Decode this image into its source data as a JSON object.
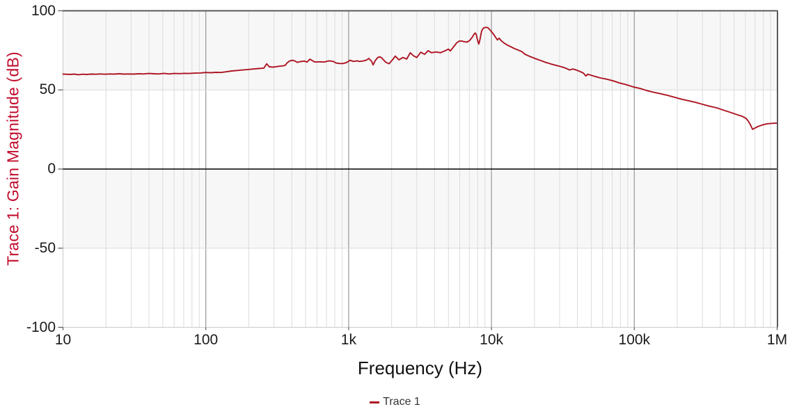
{
  "style": {
    "ylabel_color": "#c10d2d",
    "trace_color": "#ad1522",
    "band_color": "#f7f7f7",
    "minor_grid_color": "#dcdcdc",
    "major_grid_color": "#9e9e9e",
    "frame_dark_color": "#5a5a5a",
    "frame_light_color": "#c9c9c9",
    "zero_line_color": "#000000",
    "axis_tick_mark_color": "#555555",
    "tick_text_color": "#1b1b1b",
    "legend_text_color": "#333333"
  },
  "chart_data": {
    "type": "line",
    "title": "",
    "xlabel": "Frequency (Hz)",
    "ylabel": "Trace 1: Gain Magnitude (dB)",
    "xscale": "log",
    "xlim": [
      10,
      1000000
    ],
    "ylim": [
      -100,
      100
    ],
    "x_ticks": [
      {
        "value": 10,
        "label": "10"
      },
      {
        "value": 100,
        "label": "100"
      },
      {
        "value": 1000,
        "label": "1k"
      },
      {
        "value": 10000,
        "label": "10k"
      },
      {
        "value": 100000,
        "label": "100k"
      },
      {
        "value": 1000000,
        "label": "1M"
      }
    ],
    "y_ticks": [
      {
        "value": 100,
        "label": "100"
      },
      {
        "value": 50,
        "label": "50"
      },
      {
        "value": 0,
        "label": "0"
      },
      {
        "value": -50,
        "label": "-50"
      },
      {
        "value": -100,
        "label": "-100"
      }
    ],
    "grid": "log minor verticals each decade (2-9), darker major verticals at decades, horizontal lines every 50 dB, black emphasized line at 0 dB, alternating light-gray bands 100..50 and 0..-50",
    "legend_position": "bottom-center",
    "series": [
      {
        "name": "Trace 1",
        "color": "#ad1522",
        "points": [
          [
            10,
            60
          ],
          [
            10.5,
            59.9
          ],
          [
            11.2,
            59.8
          ],
          [
            12,
            60
          ],
          [
            12.8,
            59.6
          ],
          [
            13.7,
            59.9
          ],
          [
            14.7,
            59.8
          ],
          [
            15.8,
            60
          ],
          [
            17,
            59.9
          ],
          [
            18.3,
            60.1
          ],
          [
            19.7,
            59.9
          ],
          [
            21.2,
            60.1
          ],
          [
            22.9,
            60
          ],
          [
            24.7,
            60.2
          ],
          [
            26.7,
            60
          ],
          [
            28.9,
            60.1
          ],
          [
            31.3,
            60
          ],
          [
            33.9,
            60.2
          ],
          [
            36.7,
            60.1
          ],
          [
            39.8,
            60.4
          ],
          [
            43.2,
            60.2
          ],
          [
            46.9,
            60.1
          ],
          [
            50.9,
            60.5
          ],
          [
            55.3,
            60.1
          ],
          [
            60,
            60.4
          ],
          [
            65.2,
            60.3
          ],
          [
            70.9,
            60.5
          ],
          [
            77.1,
            60.4
          ],
          [
            83.9,
            60.6
          ],
          [
            91.3,
            60.7
          ],
          [
            99.4,
            61
          ],
          [
            108,
            60.9
          ],
          [
            118,
            61.1
          ],
          [
            128,
            61
          ],
          [
            140,
            61.5
          ],
          [
            152,
            62
          ],
          [
            166,
            62.3
          ],
          [
            181,
            62.6
          ],
          [
            197,
            62.9
          ],
          [
            215,
            63.2
          ],
          [
            234,
            63.5
          ],
          [
            255,
            63.8
          ],
          [
            267,
            66.5
          ],
          [
            278,
            64.6
          ],
          [
            295,
            64.4
          ],
          [
            312,
            64.7
          ],
          [
            330,
            65
          ],
          [
            348,
            65.2
          ],
          [
            360,
            65.6
          ],
          [
            370,
            67
          ],
          [
            385,
            68.2
          ],
          [
            404,
            68.7
          ],
          [
            420,
            68.3
          ],
          [
            437,
            67.4
          ],
          [
            460,
            67.9
          ],
          [
            489,
            68.2
          ],
          [
            511,
            67.6
          ],
          [
            535,
            69.4
          ],
          [
            566,
            68.1
          ],
          [
            585,
            67.6
          ],
          [
            633,
            67.8
          ],
          [
            672,
            67.6
          ],
          [
            730,
            68.4
          ],
          [
            780,
            68
          ],
          [
            816,
            67
          ],
          [
            862,
            66.7
          ],
          [
            914,
            66.7
          ],
          [
            966,
            67.3
          ],
          [
            1023,
            68.7
          ],
          [
            1082,
            68
          ],
          [
            1146,
            68.4
          ],
          [
            1183,
            68
          ],
          [
            1250,
            68.2
          ],
          [
            1324,
            68.7
          ],
          [
            1384,
            69.9
          ],
          [
            1449,
            68
          ],
          [
            1482,
            65.8
          ],
          [
            1532,
            68.4
          ],
          [
            1600,
            70.5
          ],
          [
            1660,
            70.9
          ],
          [
            1717,
            69.9
          ],
          [
            1812,
            67.6
          ],
          [
            1914,
            66.5
          ],
          [
            2028,
            69
          ],
          [
            2120,
            71.4
          ],
          [
            2250,
            69
          ],
          [
            2400,
            70.5
          ],
          [
            2550,
            69.5
          ],
          [
            2700,
            73.5
          ],
          [
            2850,
            71.5
          ],
          [
            3000,
            70.5
          ],
          [
            3200,
            73.8
          ],
          [
            3400,
            72.5
          ],
          [
            3600,
            74.8
          ],
          [
            3800,
            73.5
          ],
          [
            4100,
            74
          ],
          [
            4400,
            73.5
          ],
          [
            4800,
            75
          ],
          [
            5000,
            75.8
          ],
          [
            5150,
            74.6
          ],
          [
            5495,
            77.8
          ],
          [
            5700,
            79.7
          ],
          [
            5915,
            80.8
          ],
          [
            6180,
            80.9
          ],
          [
            6460,
            80.5
          ],
          [
            6740,
            80.2
          ],
          [
            7030,
            81.2
          ],
          [
            7310,
            83.1
          ],
          [
            7510,
            84.9
          ],
          [
            7690,
            86
          ],
          [
            7810,
            85.2
          ],
          [
            8000,
            81.2
          ],
          [
            8150,
            79
          ],
          [
            8310,
            81.9
          ],
          [
            8530,
            87.1
          ],
          [
            8760,
            89
          ],
          [
            9100,
            89.6
          ],
          [
            9440,
            89.3
          ],
          [
            9730,
            88.1
          ],
          [
            10040,
            86.6
          ],
          [
            10340,
            85.2
          ],
          [
            10710,
            83.1
          ],
          [
            11000,
            81.6
          ],
          [
            11330,
            82.7
          ],
          [
            11680,
            81.2
          ],
          [
            12230,
            79.7
          ],
          [
            12950,
            78.3
          ],
          [
            13710,
            77.2
          ],
          [
            14500,
            76.1
          ],
          [
            15350,
            75.2
          ],
          [
            16250,
            74.3
          ],
          [
            17200,
            72.5
          ],
          [
            18500,
            71.2
          ],
          [
            20000,
            70
          ],
          [
            22000,
            68.6
          ],
          [
            24000,
            67.4
          ],
          [
            26000,
            66.4
          ],
          [
            28600,
            65.4
          ],
          [
            31000,
            64.6
          ],
          [
            33400,
            63.6
          ],
          [
            35200,
            62.6
          ],
          [
            37100,
            63.2
          ],
          [
            39200,
            62.6
          ],
          [
            41500,
            61.7
          ],
          [
            43900,
            60.7
          ],
          [
            45900,
            58.8
          ],
          [
            47300,
            59.9
          ],
          [
            48900,
            59.5
          ],
          [
            51700,
            58.8
          ],
          [
            54600,
            58.2
          ],
          [
            57700,
            57.6
          ],
          [
            62400,
            57
          ],
          [
            67400,
            56.3
          ],
          [
            72300,
            55.5
          ],
          [
            78600,
            54.4
          ],
          [
            87700,
            53.3
          ],
          [
            98200,
            51.9
          ],
          [
            110000,
            50.9
          ],
          [
            121000,
            49.7
          ],
          [
            137000,
            48.5
          ],
          [
            154000,
            47.5
          ],
          [
            172000,
            46.5
          ],
          [
            192000,
            45.3
          ],
          [
            215000,
            44.1
          ],
          [
            241000,
            43.1
          ],
          [
            269000,
            42.1
          ],
          [
            301000,
            40.9
          ],
          [
            337000,
            39.7
          ],
          [
            377000,
            38.7
          ],
          [
            422000,
            37.2
          ],
          [
            472000,
            35.8
          ],
          [
            527000,
            34.3
          ],
          [
            570000,
            33.3
          ],
          [
            604000,
            32.1
          ],
          [
            624000,
            30.6
          ],
          [
            646000,
            28.4
          ],
          [
            674000,
            25.1
          ],
          [
            698000,
            25.9
          ],
          [
            739000,
            27
          ],
          [
            798000,
            28
          ],
          [
            853000,
            28.6
          ],
          [
            924000,
            28.9
          ],
          [
            1000000,
            29
          ]
        ]
      }
    ]
  }
}
